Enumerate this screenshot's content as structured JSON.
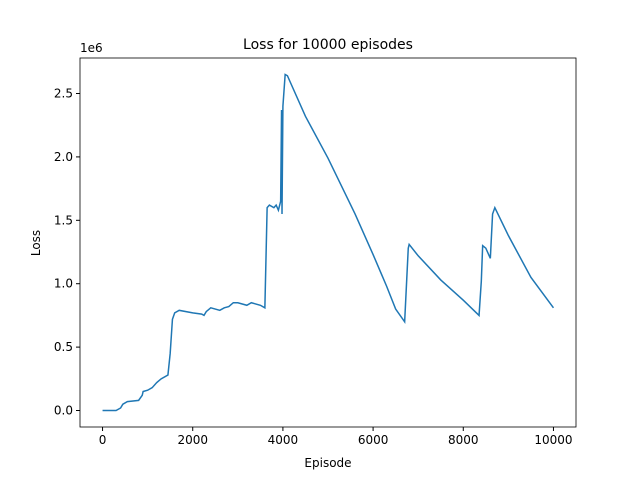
{
  "chart_data": {
    "type": "line",
    "title": "Loss for 10000 episodes",
    "x_label": "Episode",
    "y_label": "Loss",
    "y_offset_text": "1e6",
    "x": [
      0,
      300,
      400,
      450,
      550,
      800,
      880,
      900,
      1000,
      1100,
      1200,
      1300,
      1450,
      1500,
      1550,
      1600,
      1700,
      2000,
      2200,
      2250,
      2300,
      2400,
      2500,
      2600,
      2700,
      2800,
      2900,
      3000,
      3200,
      3300,
      3500,
      3600,
      3650,
      3700,
      3800,
      3850,
      3900,
      3950,
      3970,
      3980,
      4000,
      4050,
      4100,
      4500,
      5000,
      5600,
      6000,
      6300,
      6500,
      6700,
      6780,
      6800,
      7000,
      7500,
      8000,
      8350,
      8400,
      8430,
      8500,
      8600,
      8650,
      8700,
      9000,
      9500,
      10000
    ],
    "series": [
      {
        "name": "Loss",
        "color": "#1f77b4",
        "values": [
          0.0,
          0.0,
          0.02,
          0.05,
          0.07,
          0.08,
          0.12,
          0.15,
          0.16,
          0.18,
          0.22,
          0.25,
          0.28,
          0.45,
          0.72,
          0.77,
          0.79,
          0.77,
          0.76,
          0.75,
          0.78,
          0.81,
          0.8,
          0.79,
          0.81,
          0.82,
          0.85,
          0.85,
          0.83,
          0.85,
          0.83,
          0.81,
          1.6,
          1.62,
          1.6,
          1.62,
          1.58,
          1.65,
          2.37,
          1.55,
          2.4,
          2.65,
          2.64,
          2.32,
          1.99,
          1.55,
          1.23,
          0.98,
          0.8,
          0.7,
          1.28,
          1.31,
          1.22,
          1.03,
          0.87,
          0.75,
          1.02,
          1.3,
          1.28,
          1.2,
          1.55,
          1.6,
          1.38,
          1.05,
          0.81
        ]
      }
    ],
    "xlim": [
      -500,
      10500
    ],
    "xticks": [
      0,
      2000,
      4000,
      6000,
      8000,
      10000
    ],
    "ylim": [
      -0.13,
      2.78
    ],
    "yticks": [
      {
        "value": 0,
        "label": "0.0"
      },
      0.5,
      {
        "value": 1,
        "label": "1.0"
      },
      1.5,
      {
        "value": 2,
        "label": "2.0"
      },
      2.5
    ]
  }
}
